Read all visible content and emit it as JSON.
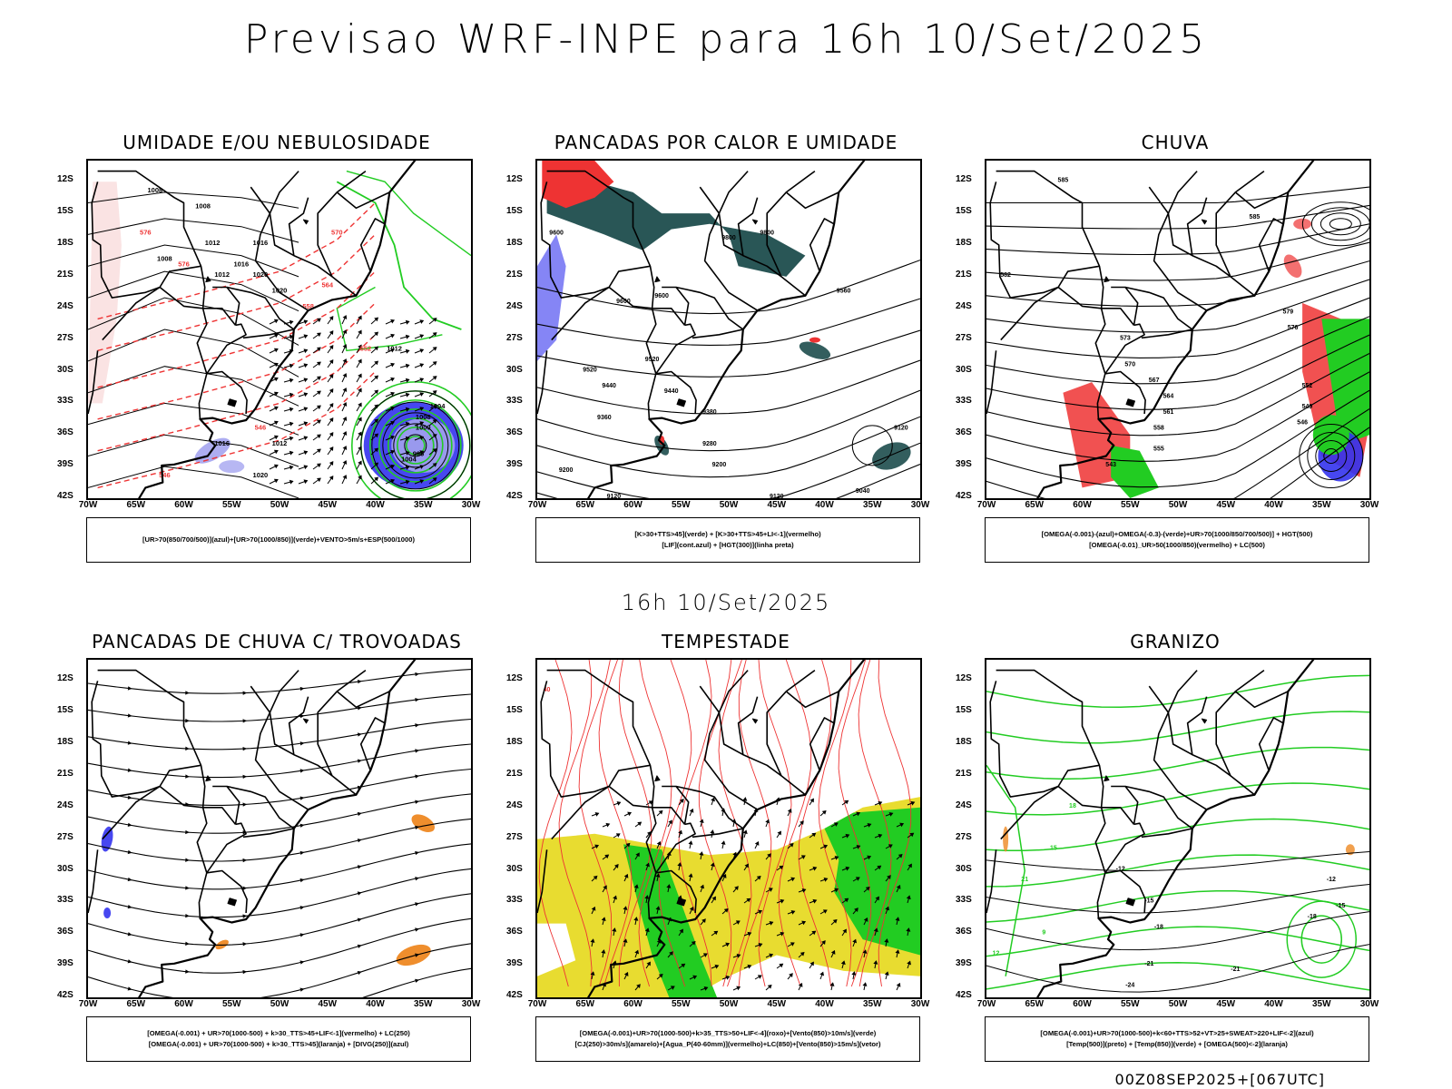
{
  "main_title": "Previsao WRF-INPE  para 16h 10/Set/2025",
  "mid_title": "16h 10/Set/2025",
  "footer": "00Z08SEP2025+[067UTC]",
  "axes": {
    "lat_labels": [
      "12S",
      "15S",
      "18S",
      "21S",
      "24S",
      "27S",
      "30S",
      "33S",
      "36S",
      "39S",
      "42S"
    ],
    "lon_labels": [
      "70W",
      "65W",
      "60W",
      "55W",
      "50W",
      "45W",
      "40W",
      "35W",
      "30W"
    ]
  },
  "colors": {
    "blue": "#3333ee",
    "green": "#22cc22",
    "red": "#ee3333",
    "orange": "#ee8822",
    "yellow": "#e8dc30",
    "darkgreen": "#1d4d4d",
    "lightblue": "#9999ee"
  },
  "panels": [
    {
      "title": "UMIDADE E/OU NEBULOSIDADE",
      "legend": [
        "[UR>70(850/700/500)](azul)+[UR>70(1000/850)](verde)+VENTO>5m/s+ESP(500/1000)"
      ],
      "labels": [
        "1008",
        "1008",
        "1008",
        "1012",
        "1012",
        "1016",
        "1016",
        "1020",
        "1020",
        "1012",
        "1004",
        "1008",
        "1000",
        "996",
        "1004",
        "1012",
        "1016",
        "1020",
        "576",
        "576",
        "570",
        "564",
        "558",
        "552",
        "546",
        "546"
      ]
    },
    {
      "title": "PANCADAS POR CALOR E UMIDADE",
      "legend": [
        "[K>30+TTS>45](verde) + [K>30+TTS>45+LI<-1](vermelho)",
        "[LIF](cont.azul) + [HGT(300)](linha preta)"
      ],
      "labels": [
        "9600",
        "9600",
        "9600",
        "9520",
        "9520",
        "9440",
        "9440",
        "9380",
        "9360",
        "9280",
        "9200",
        "9200",
        "9120",
        "9120",
        "9120",
        "9040",
        "9800",
        "9800",
        "9560"
      ]
    },
    {
      "title": "CHUVA",
      "legend": [
        "[OMEGA(-0.001)-(azul)+OMEGA(-0.3)-(verde)+UR>70(1000/850/700/500)] + HGT(500)",
        "[OMEGA(-0.01)_UR>50(1000/850)(vermelho) + LC(500)"
      ],
      "labels": [
        "585",
        "585",
        "582",
        "579",
        "576",
        "573",
        "570",
        "567",
        "564",
        "561",
        "558",
        "555",
        "552",
        "549",
        "546",
        "543"
      ]
    },
    {
      "title": "PANCADAS DE CHUVA C/ TROVOADAS",
      "legend": [
        "[OMEGA(-0.001) + UR>70(1000-500) + k>30_TTS>45+LIF<-1](vermelho) + LC(250)",
        "[OMEGA(-0.001) + UR>70(1000-500) + k>30_TTS>45](laranja) + [DIVG(250)](azul)"
      ],
      "labels": []
    },
    {
      "title": "TEMPESTADE",
      "legend": [
        "[OMEGA(-0.001)+UR>70(1000-500)+k>35_TTS>50+LIF<-4](roxo)+[Vento(850)>10m/s](verde)",
        "[CJ(250)>30m/s](amarelo)+[Agua_P(40-60mm)](vermelho)+LC(850)+[Vento(850)>15m/s](vetor)"
      ],
      "labels": [
        "40"
      ]
    },
    {
      "title": "GRANIZO",
      "legend": [
        "[OMEGA(-0.001)+UR>70(1000-500)+k<60+TTS>52+VT>25+SWEAT>220+LIF<-2](azul)",
        "[Temp(500)](preto) + [Temp(850)](verde) + [OMEGA(500)<-2](laranja)"
      ],
      "labels": [
        "-12",
        "-12",
        "-15",
        "-15",
        "-18",
        "-18",
        "-21",
        "-21",
        "-24",
        "9",
        "12",
        "15",
        "18",
        "21"
      ]
    }
  ],
  "chart_data": {
    "type": "heatmap",
    "title": "Previsao WRF-INPE  para 16h 10/Set/2025",
    "lat_range": [
      "42S",
      "12S"
    ],
    "lon_range": [
      "70W",
      "30W"
    ],
    "subplots": [
      "UMIDADE E/OU NEBULOSIDADE",
      "PANCADAS POR CALOR E UMIDADE",
      "CHUVA",
      "PANCADAS DE CHUVA C/ TROVOADAS",
      "TEMPESTADE",
      "GRANIZO"
    ]
  }
}
